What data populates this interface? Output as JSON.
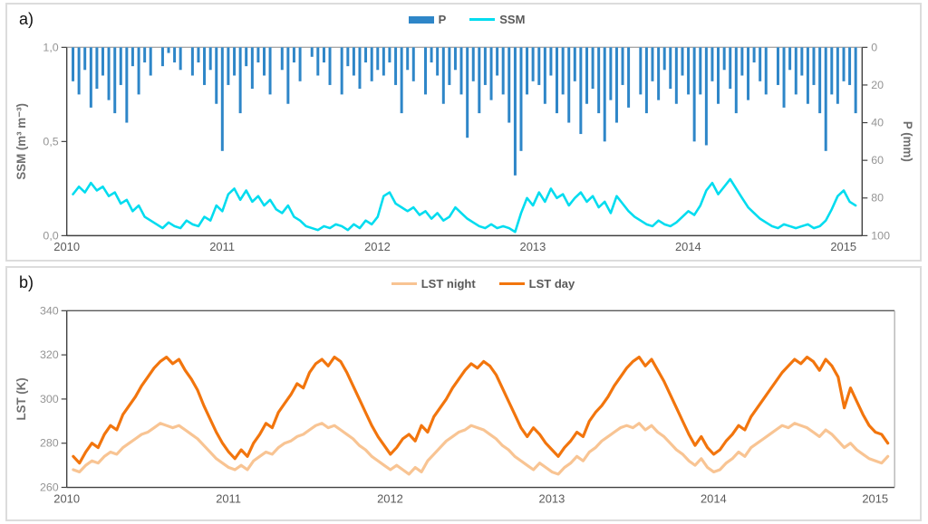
{
  "page": {
    "background": "#ffffff",
    "panel_border": "#dcdcdc"
  },
  "panels": [
    {
      "label": "a)"
    },
    {
      "label": "b)"
    }
  ],
  "colors": {
    "precip_bar": "#2E86C8",
    "ssm_line": "#00DCEF",
    "lst_night": "#F8C493",
    "lst_day": "#F2750D",
    "axis": "#404040",
    "tick_label": "#949494",
    "year_label": "#5a5a5a",
    "legend_text": "#595959"
  },
  "chart_data": [
    {
      "id": "ssm_p",
      "type": "bar",
      "panel": "a",
      "x_start": 2010.04,
      "x_step": 0.03846,
      "x_range": [
        2010,
        2015.12
      ],
      "x_ticks": [
        2010,
        2011,
        2012,
        2013,
        2014,
        2015
      ],
      "left_axis": {
        "label": "SSM (m³ m⁻³)",
        "ticks": [
          "1,0",
          "0,5",
          "0,0"
        ],
        "tick_values": [
          1,
          0.5,
          0
        ],
        "range": [
          0,
          1
        ]
      },
      "right_axis": {
        "label": "P (mm)",
        "ticks": [
          0,
          20,
          40,
          60,
          80,
          100
        ],
        "range": [
          0,
          100
        ],
        "inverted": true
      },
      "legend_position": "top-center",
      "series": [
        {
          "name": "P",
          "type": "bar",
          "axis": "right",
          "color": "#2E86C8",
          "values": [
            18,
            25,
            12,
            32,
            22,
            15,
            28,
            35,
            20,
            40,
            10,
            25,
            8,
            15,
            0,
            10,
            3,
            8,
            12,
            0,
            15,
            8,
            20,
            12,
            30,
            55,
            20,
            15,
            35,
            10,
            22,
            8,
            15,
            25,
            0,
            12,
            30,
            8,
            18,
            0,
            5,
            15,
            8,
            20,
            0,
            25,
            10,
            15,
            22,
            8,
            18,
            12,
            15,
            8,
            20,
            35,
            12,
            18,
            0,
            25,
            8,
            15,
            30,
            20,
            12,
            25,
            48,
            18,
            35,
            20,
            28,
            15,
            25,
            40,
            68,
            55,
            25,
            18,
            20,
            30,
            15,
            35,
            25,
            40,
            18,
            46,
            30,
            22,
            35,
            50,
            28,
            40,
            20,
            32,
            0,
            25,
            35,
            18,
            28,
            12,
            22,
            30,
            15,
            25,
            50,
            25,
            52,
            18,
            30,
            12,
            22,
            35,
            15,
            28,
            8,
            18,
            25,
            0,
            20,
            32,
            12,
            25,
            15,
            30,
            20,
            35,
            55,
            25,
            30,
            18,
            20,
            35
          ]
        },
        {
          "name": "SSM",
          "type": "line",
          "axis": "left",
          "color": "#00DCEF",
          "values": [
            0.22,
            0.26,
            0.23,
            0.28,
            0.24,
            0.26,
            0.21,
            0.23,
            0.17,
            0.19,
            0.13,
            0.16,
            0.1,
            0.08,
            0.06,
            0.04,
            0.07,
            0.05,
            0.04,
            0.08,
            0.06,
            0.05,
            0.1,
            0.08,
            0.16,
            0.13,
            0.22,
            0.25,
            0.19,
            0.24,
            0.18,
            0.21,
            0.16,
            0.19,
            0.14,
            0.12,
            0.16,
            0.1,
            0.08,
            0.05,
            0.04,
            0.03,
            0.05,
            0.04,
            0.06,
            0.05,
            0.03,
            0.06,
            0.04,
            0.08,
            0.06,
            0.1,
            0.21,
            0.23,
            0.17,
            0.15,
            0.13,
            0.15,
            0.11,
            0.13,
            0.09,
            0.12,
            0.08,
            0.1,
            0.15,
            0.12,
            0.09,
            0.07,
            0.05,
            0.04,
            0.06,
            0.04,
            0.05,
            0.04,
            0.02,
            0.12,
            0.2,
            0.16,
            0.23,
            0.18,
            0.25,
            0.2,
            0.22,
            0.16,
            0.2,
            0.23,
            0.18,
            0.21,
            0.15,
            0.18,
            0.12,
            0.21,
            0.17,
            0.13,
            0.1,
            0.08,
            0.06,
            0.05,
            0.08,
            0.06,
            0.05,
            0.07,
            0.1,
            0.13,
            0.11,
            0.16,
            0.24,
            0.28,
            0.22,
            0.26,
            0.3,
            0.25,
            0.2,
            0.15,
            0.12,
            0.09,
            0.07,
            0.05,
            0.04,
            0.06,
            0.05,
            0.04,
            0.05,
            0.06,
            0.04,
            0.05,
            0.08,
            0.14,
            0.21,
            0.24,
            0.18,
            0.16
          ]
        }
      ]
    },
    {
      "id": "lst",
      "type": "line",
      "panel": "b",
      "x_start": 2010.04,
      "x_step": 0.03846,
      "x_range": [
        2010,
        2015.12
      ],
      "x_ticks": [
        2010,
        2011,
        2012,
        2013,
        2014,
        2015
      ],
      "left_axis": {
        "label": "LST (K)",
        "ticks": [
          "340",
          "320",
          "300",
          "280",
          "260"
        ],
        "tick_values": [
          340,
          320,
          300,
          280,
          260
        ],
        "range": [
          260,
          340
        ]
      },
      "legend_position": "top-center",
      "series": [
        {
          "name": "LST night",
          "type": "line",
          "axis": "left",
          "color": "#F8C493",
          "values": [
            268,
            267,
            270,
            272,
            271,
            274,
            276,
            275,
            278,
            280,
            282,
            284,
            285,
            287,
            289,
            288,
            287,
            288,
            286,
            284,
            282,
            279,
            276,
            273,
            271,
            269,
            268,
            270,
            268,
            272,
            274,
            276,
            275,
            278,
            280,
            281,
            283,
            284,
            286,
            288,
            289,
            287,
            288,
            286,
            284,
            282,
            279,
            277,
            274,
            272,
            270,
            268,
            270,
            268,
            266,
            269,
            267,
            272,
            275,
            278,
            281,
            283,
            285,
            286,
            288,
            287,
            286,
            284,
            282,
            279,
            277,
            274,
            272,
            270,
            268,
            271,
            269,
            267,
            266,
            269,
            271,
            274,
            272,
            276,
            278,
            281,
            283,
            285,
            287,
            288,
            287,
            289,
            286,
            288,
            285,
            283,
            280,
            277,
            275,
            272,
            270,
            273,
            269,
            267,
            268,
            271,
            273,
            276,
            274,
            278,
            280,
            282,
            284,
            286,
            288,
            287,
            289,
            288,
            287,
            285,
            283,
            286,
            284,
            281,
            278,
            280,
            277,
            275,
            273,
            272,
            271,
            274
          ]
        },
        {
          "name": "LST day",
          "type": "line",
          "axis": "left",
          "color": "#F2750D",
          "values": [
            274,
            271,
            276,
            280,
            278,
            284,
            288,
            286,
            293,
            297,
            301,
            306,
            310,
            314,
            317,
            319,
            316,
            318,
            313,
            309,
            304,
            297,
            291,
            285,
            280,
            276,
            273,
            277,
            274,
            280,
            284,
            289,
            287,
            294,
            298,
            302,
            307,
            305,
            312,
            316,
            318,
            315,
            319,
            317,
            312,
            306,
            300,
            294,
            288,
            283,
            279,
            275,
            278,
            282,
            284,
            281,
            288,
            285,
            292,
            296,
            300,
            305,
            309,
            313,
            316,
            314,
            317,
            315,
            311,
            305,
            299,
            293,
            287,
            283,
            287,
            284,
            280,
            277,
            274,
            278,
            281,
            285,
            283,
            290,
            294,
            297,
            301,
            306,
            310,
            314,
            317,
            319,
            315,
            318,
            313,
            308,
            302,
            296,
            290,
            284,
            279,
            283,
            278,
            275,
            277,
            281,
            284,
            288,
            286,
            292,
            296,
            300,
            304,
            308,
            312,
            315,
            318,
            316,
            319,
            317,
            313,
            318,
            315,
            310,
            296,
            305,
            299,
            293,
            288,
            285,
            284,
            280
          ]
        }
      ]
    }
  ]
}
